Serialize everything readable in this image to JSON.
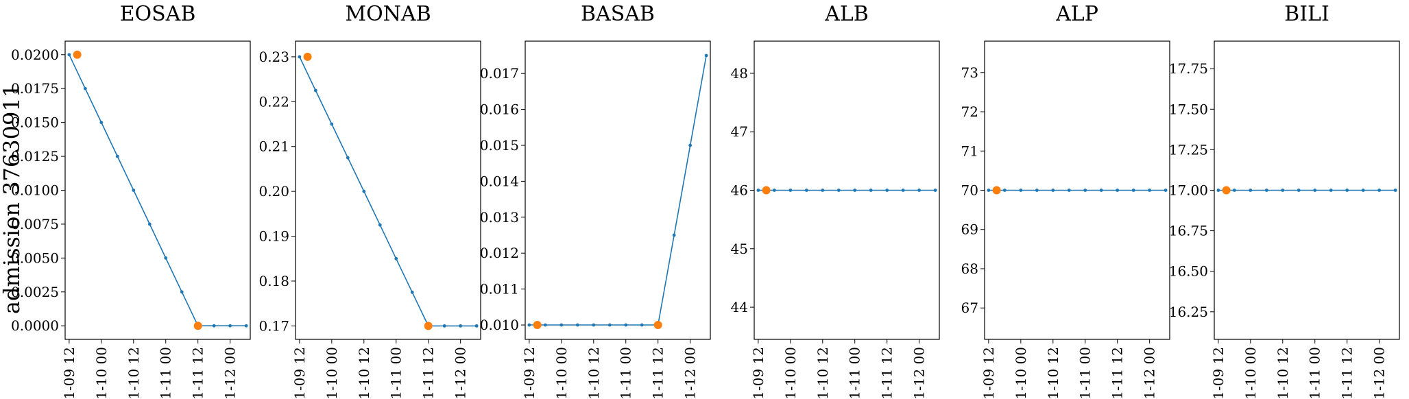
{
  "figure": {
    "ylabel": "admission 37630911"
  },
  "colors": {
    "line": "#1f77b4",
    "highlight": "#ff7f0e",
    "axes": "#000000"
  },
  "chart_data": [
    {
      "type": "line",
      "title": "EOSAB",
      "x": [
        "01-09 12",
        "01-09 18",
        "01-10 00",
        "01-10 06",
        "01-10 12",
        "01-10 18",
        "01-11 00",
        "01-11 06",
        "01-11 12",
        "01-11 18",
        "01-12 00",
        "01-12 06"
      ],
      "values": [
        0.02,
        0.0175,
        0.015,
        0.0125,
        0.01,
        0.0075,
        0.005,
        0.0025,
        0.0,
        0.0,
        0.0,
        0.0
      ],
      "highlights": [
        {
          "x": "01-09 15",
          "y": 0.02
        },
        {
          "x": "01-11 12",
          "y": 0.0
        }
      ],
      "xticks": [
        "01-09 12",
        "01-10 00",
        "01-10 12",
        "01-11 00",
        "01-11 12",
        "01-12 00"
      ],
      "yticks": [
        "0.0000",
        "0.0025",
        "0.0050",
        "0.0075",
        "0.0100",
        "0.0125",
        "0.0150",
        "0.0175",
        "0.0200"
      ],
      "ylim": [
        -0.001,
        0.021
      ]
    },
    {
      "type": "line",
      "title": "MONAB",
      "x": [
        "01-09 12",
        "01-09 18",
        "01-10 00",
        "01-10 06",
        "01-10 12",
        "01-10 18",
        "01-11 00",
        "01-11 06",
        "01-11 12",
        "01-11 18",
        "01-12 00",
        "01-12 06"
      ],
      "values": [
        0.23,
        0.2225,
        0.215,
        0.2075,
        0.2,
        0.1925,
        0.185,
        0.1775,
        0.17,
        0.17,
        0.17,
        0.17
      ],
      "highlights": [
        {
          "x": "01-09 15",
          "y": 0.23
        },
        {
          "x": "01-11 12",
          "y": 0.17
        }
      ],
      "xticks": [
        "01-09 12",
        "01-10 00",
        "01-10 12",
        "01-11 00",
        "01-11 12",
        "01-12 00"
      ],
      "yticks": [
        "0.17",
        "0.18",
        "0.19",
        "0.20",
        "0.21",
        "0.22",
        "0.23"
      ],
      "ylim": [
        0.167,
        0.2335
      ]
    },
    {
      "type": "line",
      "title": "BASAB",
      "x": [
        "01-09 12",
        "01-09 18",
        "01-10 00",
        "01-10 06",
        "01-10 12",
        "01-10 18",
        "01-11 00",
        "01-11 06",
        "01-11 12",
        "01-11 18",
        "01-12 00",
        "01-12 06"
      ],
      "values": [
        0.01,
        0.01,
        0.01,
        0.01,
        0.01,
        0.01,
        0.01,
        0.01,
        0.01,
        0.0125,
        0.015,
        0.0175
      ],
      "highlights": [
        {
          "x": "01-09 15",
          "y": 0.01
        },
        {
          "x": "01-11 12",
          "y": 0.01
        }
      ],
      "xticks": [
        "01-09 12",
        "01-10 00",
        "01-10 12",
        "01-11 00",
        "01-11 12",
        "01-12 00"
      ],
      "yticks": [
        "0.010",
        "0.011",
        "0.012",
        "0.013",
        "0.014",
        "0.015",
        "0.016",
        "0.017"
      ],
      "ylim": [
        0.0096,
        0.0179
      ]
    },
    {
      "type": "line",
      "title": "ALB",
      "x": [
        "01-09 12",
        "01-09 18",
        "01-10 00",
        "01-10 06",
        "01-10 12",
        "01-10 18",
        "01-11 00",
        "01-11 06",
        "01-11 12",
        "01-11 18",
        "01-12 00",
        "01-12 06"
      ],
      "values": [
        46,
        46,
        46,
        46,
        46,
        46,
        46,
        46,
        46,
        46,
        46,
        46
      ],
      "highlights": [
        {
          "x": "01-09 15",
          "y": 46
        }
      ],
      "xticks": [
        "01-09 12",
        "01-10 00",
        "01-10 12",
        "01-11 00",
        "01-11 12",
        "01-12 00"
      ],
      "yticks": [
        "44",
        "45",
        "46",
        "47",
        "48"
      ],
      "ylim": [
        43.45,
        48.55
      ]
    },
    {
      "type": "line",
      "title": "ALP",
      "x": [
        "01-09 12",
        "01-09 18",
        "01-10 00",
        "01-10 06",
        "01-10 12",
        "01-10 18",
        "01-11 00",
        "01-11 06",
        "01-11 12",
        "01-11 18",
        "01-12 00",
        "01-12 06"
      ],
      "values": [
        70,
        70,
        70,
        70,
        70,
        70,
        70,
        70,
        70,
        70,
        70,
        70
      ],
      "highlights": [
        {
          "x": "01-09 15",
          "y": 70
        }
      ],
      "xticks": [
        "01-09 12",
        "01-10 00",
        "01-10 12",
        "01-11 00",
        "01-11 12",
        "01-12 00"
      ],
      "yticks": [
        "67",
        "68",
        "69",
        "70",
        "71",
        "72",
        "73"
      ],
      "ylim": [
        66.2,
        73.8
      ]
    },
    {
      "type": "line",
      "title": "BILI",
      "x": [
        "01-09 12",
        "01-09 18",
        "01-10 00",
        "01-10 06",
        "01-10 12",
        "01-10 18",
        "01-11 00",
        "01-11 06",
        "01-11 12",
        "01-11 18",
        "01-12 00",
        "01-12 06"
      ],
      "values": [
        17,
        17,
        17,
        17,
        17,
        17,
        17,
        17,
        17,
        17,
        17,
        17
      ],
      "highlights": [
        {
          "x": "01-09 15",
          "y": 17
        }
      ],
      "xticks": [
        "01-09 12",
        "01-10 00",
        "01-10 12",
        "01-11 00",
        "01-11 12",
        "01-12 00"
      ],
      "yticks": [
        "16.25",
        "16.50",
        "16.75",
        "17.00",
        "17.25",
        "17.50",
        "17.75"
      ],
      "ylim": [
        16.08,
        17.92
      ]
    }
  ]
}
